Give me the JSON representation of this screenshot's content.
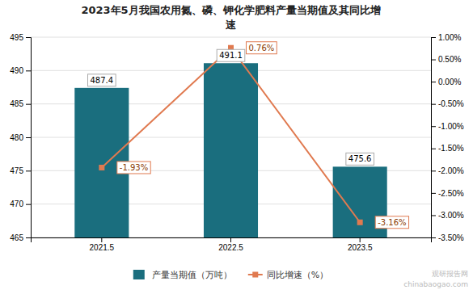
{
  "chart_data": {
    "type": "bar",
    "title": "2023年5月我国农用氮、磷、钾化学肥料产量当期值及其同比增\n速",
    "categories": [
      "2021.5",
      "2022.5",
      "2023.5"
    ],
    "series": [
      {
        "name": "产量当期值（万吨）",
        "type": "bar",
        "color": "#1a6e7e",
        "values": [
          487.4,
          491.1,
          475.6
        ]
      },
      {
        "name": "同比增速（%）",
        "type": "line",
        "axis": "y2",
        "color": "#e07a50",
        "marker": "square",
        "line_style": "solid",
        "values": [
          -1.93,
          0.76,
          -3.16
        ],
        "value_labels": [
          "-1.93%",
          "0.76%",
          "-3.16%"
        ]
      }
    ],
    "ylim": [
      465,
      495
    ],
    "yticks": [
      465,
      470,
      475,
      480,
      485,
      490,
      495
    ],
    "y2lim": [
      -3.5,
      1.0
    ],
    "y2ticks": [
      {
        "value": -3.5,
        "label": "-3.50%"
      },
      {
        "value": -3.0,
        "label": "-3.00%"
      },
      {
        "value": -2.5,
        "label": "-2.50%"
      },
      {
        "value": -2.0,
        "label": "-2.00%"
      },
      {
        "value": -1.5,
        "label": "-1.50%"
      },
      {
        "value": -1.0,
        "label": "-1.00%"
      },
      {
        "value": -0.5,
        "label": "-0.50%"
      },
      {
        "value": 0.0,
        "label": "0.00%"
      },
      {
        "value": 0.5,
        "label": "0.50%"
      },
      {
        "value": 1.0,
        "label": "1.00%"
      }
    ],
    "grid": true,
    "legend": "bottom",
    "data_labels": true,
    "annotations": [
      "观研报告网",
      "chinabaogao.com"
    ]
  }
}
